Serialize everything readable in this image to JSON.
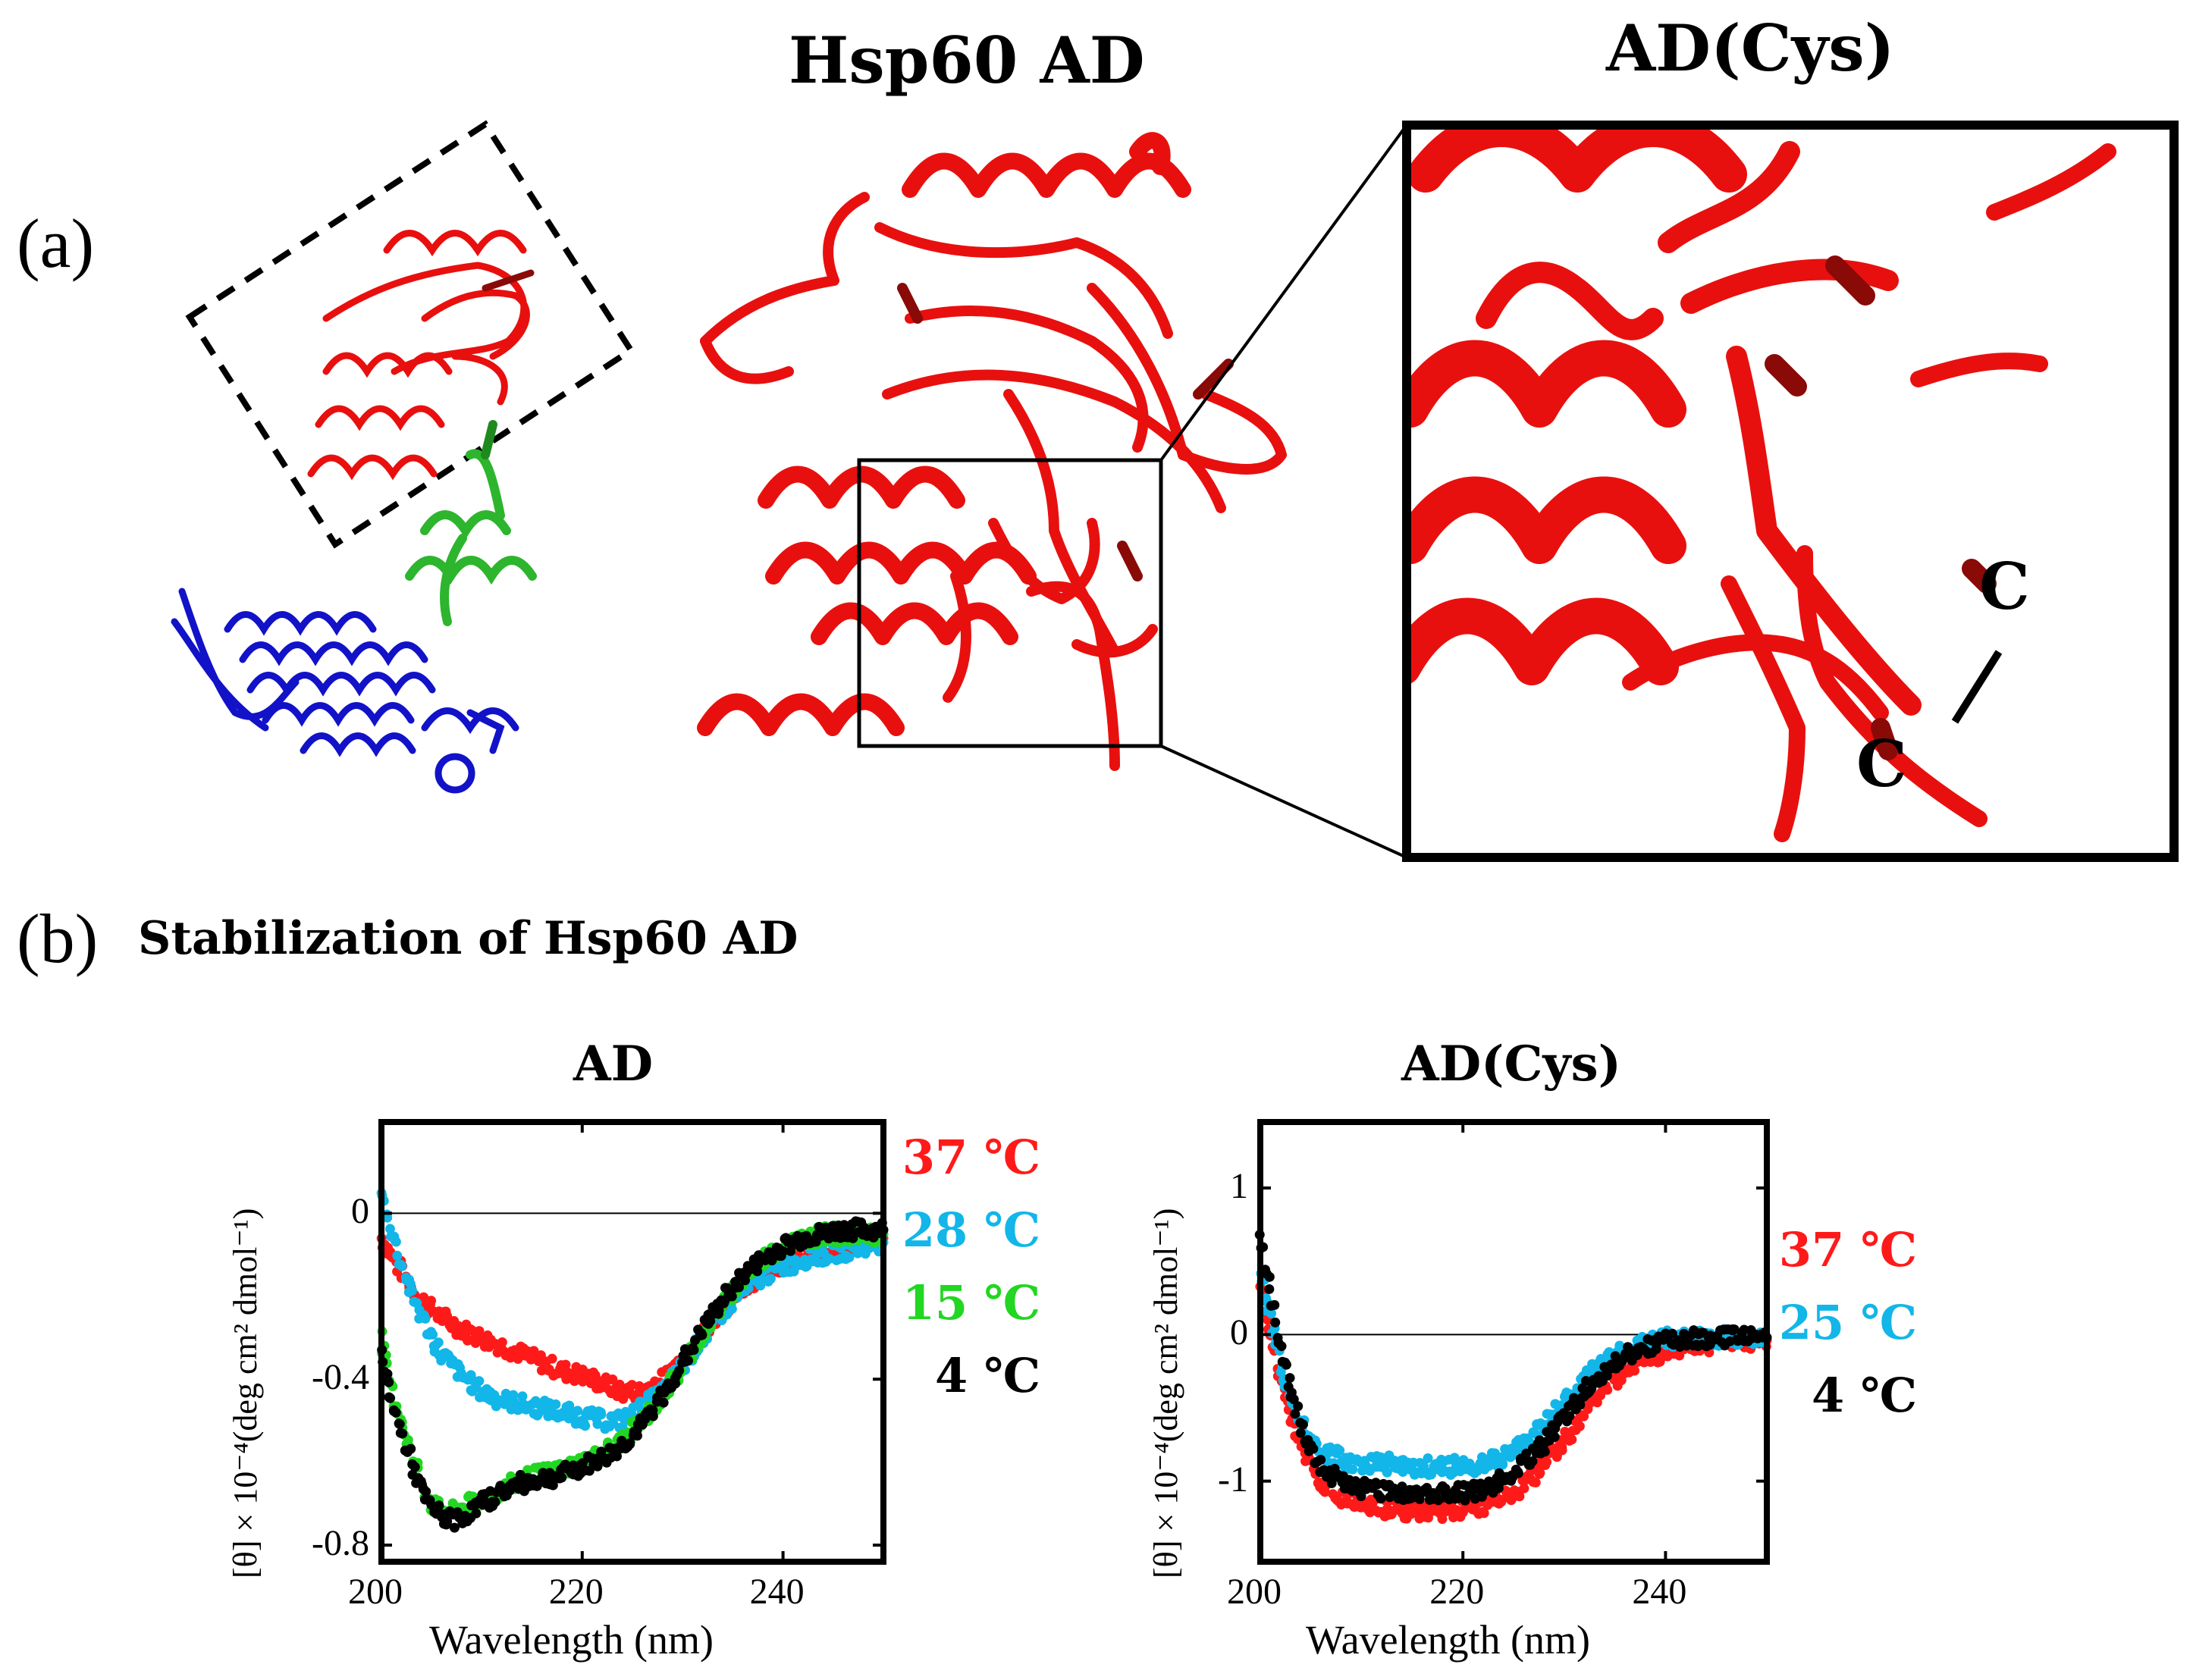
{
  "panel_a": {
    "label": "(a)",
    "title_center": "Hsp60 AD",
    "title_right": "AD(Cys)",
    "atom_top": "C",
    "atom_bottom": "C",
    "colors": {
      "ad": "#e8100e",
      "ad_dark": "#8a0a08",
      "linker": "#2db52d",
      "core": "#1212c8"
    }
  },
  "panel_b": {
    "label": "(b)",
    "title": "Stabilization of Hsp60 AD"
  },
  "chart_data": [
    {
      "type": "scatter",
      "title": "AD",
      "xlabel": "Wavelength (nm)",
      "ylabel": "[θ] × 10⁻⁴(deg cm² dmol⁻¹)",
      "xlim": [
        200,
        250
      ],
      "ylim": [
        -0.84,
        0.22
      ],
      "xticks": [
        "200",
        "220",
        "240"
      ],
      "yticks": [
        "0",
        "-0.4",
        "-0.8"
      ],
      "ytick_values": [
        0,
        -0.4,
        -0.8
      ],
      "xtick_values": [
        200,
        220,
        240
      ],
      "series": [
        {
          "name": "37 ℃",
          "color": "#ff1a1a",
          "x": [
            200,
            201,
            202,
            203,
            204,
            205,
            206,
            208,
            210,
            212,
            214,
            216,
            218,
            220,
            222,
            224,
            226,
            228,
            230,
            232,
            234,
            236,
            238,
            240,
            242,
            244,
            246,
            248,
            250
          ],
          "y": [
            -0.06,
            -0.1,
            -0.14,
            -0.18,
            -0.21,
            -0.23,
            -0.25,
            -0.28,
            -0.3,
            -0.32,
            -0.34,
            -0.36,
            -0.38,
            -0.39,
            -0.41,
            -0.43,
            -0.43,
            -0.4,
            -0.35,
            -0.29,
            -0.23,
            -0.18,
            -0.14,
            -0.12,
            -0.1,
            -0.09,
            -0.08,
            -0.07,
            -0.06
          ]
        },
        {
          "name": "28 ℃",
          "color": "#12b6e8",
          "x": [
            200,
            201,
            202,
            203,
            204,
            205,
            206,
            208,
            210,
            212,
            214,
            216,
            218,
            220,
            222,
            224,
            226,
            228,
            230,
            232,
            234,
            236,
            238,
            240,
            242,
            244,
            246,
            248,
            250
          ],
          "y": [
            0.05,
            -0.04,
            -0.12,
            -0.19,
            -0.25,
            -0.3,
            -0.34,
            -0.39,
            -0.43,
            -0.45,
            -0.46,
            -0.47,
            -0.48,
            -0.49,
            -0.5,
            -0.5,
            -0.47,
            -0.43,
            -0.37,
            -0.3,
            -0.24,
            -0.19,
            -0.15,
            -0.13,
            -0.11,
            -0.1,
            -0.09,
            -0.08,
            -0.07
          ]
        },
        {
          "name": "15 ℃",
          "color": "#22d622",
          "x": [
            200,
            201,
            202,
            203,
            204,
            205,
            206,
            207,
            208,
            209,
            210,
            212,
            214,
            216,
            218,
            220,
            222,
            224,
            226,
            228,
            230,
            232,
            234,
            236,
            238,
            240,
            242,
            244,
            246,
            248,
            250
          ],
          "y": [
            -0.3,
            -0.42,
            -0.5,
            -0.58,
            -0.65,
            -0.7,
            -0.72,
            -0.72,
            -0.71,
            -0.7,
            -0.69,
            -0.67,
            -0.64,
            -0.63,
            -0.62,
            -0.6,
            -0.58,
            -0.55,
            -0.5,
            -0.44,
            -0.37,
            -0.29,
            -0.22,
            -0.16,
            -0.11,
            -0.08,
            -0.06,
            -0.05,
            -0.05,
            -0.05,
            -0.05
          ]
        },
        {
          "name": "4 ℃",
          "color": "#000000",
          "x": [
            200,
            201,
            202,
            203,
            204,
            205,
            206,
            207,
            208,
            209,
            210,
            212,
            214,
            216,
            218,
            220,
            222,
            224,
            226,
            228,
            230,
            232,
            234,
            236,
            238,
            240,
            242,
            244,
            246,
            248,
            250
          ],
          "y": [
            -0.35,
            -0.45,
            -0.53,
            -0.6,
            -0.67,
            -0.71,
            -0.73,
            -0.74,
            -0.73,
            -0.72,
            -0.7,
            -0.67,
            -0.65,
            -0.64,
            -0.63,
            -0.61,
            -0.59,
            -0.56,
            -0.51,
            -0.44,
            -0.36,
            -0.28,
            -0.21,
            -0.15,
            -0.11,
            -0.08,
            -0.06,
            -0.05,
            -0.04,
            -0.04,
            -0.04
          ]
        }
      ]
    },
    {
      "type": "scatter",
      "title": "AD(Cys)",
      "xlabel": "Wavelength (nm)",
      "ylabel": "[θ] × 10⁻⁴(deg cm² dmol⁻¹)",
      "xlim": [
        200,
        250
      ],
      "ylim": [
        -1.55,
        1.45
      ],
      "xticks": [
        "200",
        "220",
        "240"
      ],
      "yticks": [
        "1",
        "0",
        "-1"
      ],
      "ytick_values": [
        1,
        0,
        -1
      ],
      "xtick_values": [
        200,
        220,
        240
      ],
      "series": [
        {
          "name": "37 ℃",
          "color": "#ff1a1a",
          "x": [
            200,
            201,
            202,
            203,
            204,
            205,
            206,
            208,
            210,
            212,
            214,
            216,
            218,
            220,
            222,
            224,
            226,
            228,
            230,
            232,
            234,
            236,
            238,
            240,
            242,
            244,
            246,
            248,
            250
          ],
          "y": [
            0.3,
            0.0,
            -0.3,
            -0.55,
            -0.75,
            -0.9,
            -1.0,
            -1.1,
            -1.15,
            -1.18,
            -1.2,
            -1.2,
            -1.2,
            -1.19,
            -1.17,
            -1.12,
            -1.03,
            -0.9,
            -0.72,
            -0.53,
            -0.36,
            -0.24,
            -0.16,
            -0.12,
            -0.09,
            -0.07,
            -0.05,
            -0.04,
            -0.04
          ]
        },
        {
          "name": "25 ℃",
          "color": "#12b6e8",
          "x": [
            200,
            201,
            202,
            203,
            204,
            205,
            206,
            208,
            210,
            212,
            214,
            216,
            218,
            220,
            222,
            224,
            226,
            228,
            230,
            232,
            234,
            236,
            238,
            240,
            242,
            244,
            246,
            248,
            250
          ],
          "y": [
            0.45,
            0.1,
            -0.2,
            -0.45,
            -0.6,
            -0.72,
            -0.8,
            -0.85,
            -0.87,
            -0.88,
            -0.89,
            -0.9,
            -0.9,
            -0.9,
            -0.88,
            -0.84,
            -0.75,
            -0.62,
            -0.46,
            -0.31,
            -0.19,
            -0.11,
            -0.06,
            -0.03,
            -0.02,
            -0.02,
            -0.02,
            -0.02,
            -0.02
          ]
        },
        {
          "name": "4 ℃",
          "color": "#000000",
          "x": [
            200,
            201,
            202,
            203,
            204,
            205,
            206,
            208,
            210,
            212,
            214,
            216,
            218,
            220,
            222,
            224,
            226,
            228,
            230,
            232,
            234,
            236,
            238,
            240,
            242,
            244,
            246,
            248,
            250
          ],
          "y": [
            0.7,
            0.3,
            -0.1,
            -0.4,
            -0.62,
            -0.78,
            -0.9,
            -1.0,
            -1.05,
            -1.07,
            -1.08,
            -1.09,
            -1.09,
            -1.08,
            -1.05,
            -0.99,
            -0.88,
            -0.74,
            -0.56,
            -0.38,
            -0.24,
            -0.14,
            -0.08,
            -0.05,
            -0.03,
            -0.02,
            -0.02,
            -0.02,
            -0.02
          ]
        }
      ]
    }
  ]
}
